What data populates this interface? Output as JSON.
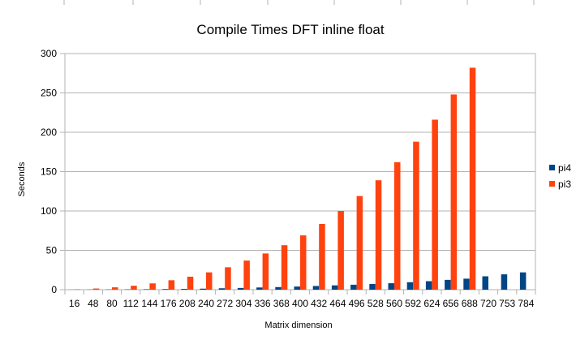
{
  "chart_data": {
    "type": "bar",
    "title": "Compile Times DFT inline float",
    "xlabel": "Matrix dimension",
    "ylabel": "Seconds",
    "ylim": [
      0,
      300
    ],
    "yticks": [
      0,
      50,
      100,
      150,
      200,
      250,
      300
    ],
    "grid": true,
    "legend_position": "right",
    "categories": [
      "16",
      "48",
      "80",
      "112",
      "144",
      "176",
      "208",
      "240",
      "272",
      "304",
      "336",
      "368",
      "400",
      "432",
      "464",
      "496",
      "528",
      "560",
      "592",
      "624",
      "656",
      "688",
      "720",
      "753",
      "784"
    ],
    "series": [
      {
        "name": "pi4",
        "color": "#004586",
        "values": [
          0.1,
          0.2,
          0.3,
          0.4,
          0.6,
          0.8,
          1.0,
          1.3,
          1.8,
          2.2,
          2.8,
          3.3,
          4.0,
          4.7,
          5.5,
          6.3,
          7.3,
          8.2,
          9.5,
          10.8,
          12.5,
          14.0,
          17.0,
          19.5,
          22.0
        ]
      },
      {
        "name": "pi3",
        "color": "#ff420e",
        "values": [
          0.5,
          1.5,
          3.0,
          5.0,
          8.0,
          12.0,
          16.5,
          22.0,
          28.5,
          37.0,
          46.0,
          56.5,
          69.0,
          83.5,
          100.0,
          119.0,
          139.0,
          162.0,
          188.0,
          216.0,
          248.0,
          282.0,
          0,
          0,
          0
        ]
      }
    ]
  }
}
